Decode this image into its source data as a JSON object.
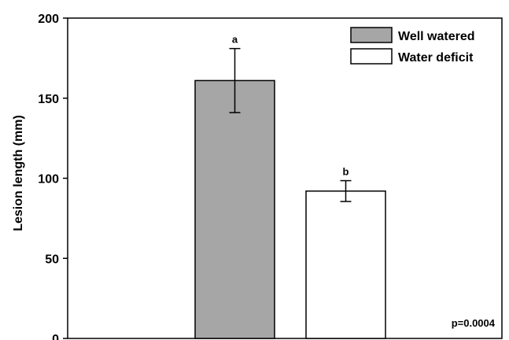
{
  "chart_data": {
    "type": "bar",
    "title": "",
    "xlabel": "",
    "ylabel": "Lesion length (mm)",
    "ylim": [
      0,
      200
    ],
    "yticks": [
      0,
      50,
      100,
      150,
      200
    ],
    "grid": false,
    "legend_position": "top-right",
    "series": [
      {
        "name": "Well watered",
        "value": 161,
        "error": 20,
        "significance": "a",
        "color": "#a6a6a6"
      },
      {
        "name": "Water deficit",
        "value": 92,
        "error": 6.5,
        "significance": "b",
        "color": "#ffffff"
      }
    ],
    "annotation": "p=0.0004"
  }
}
